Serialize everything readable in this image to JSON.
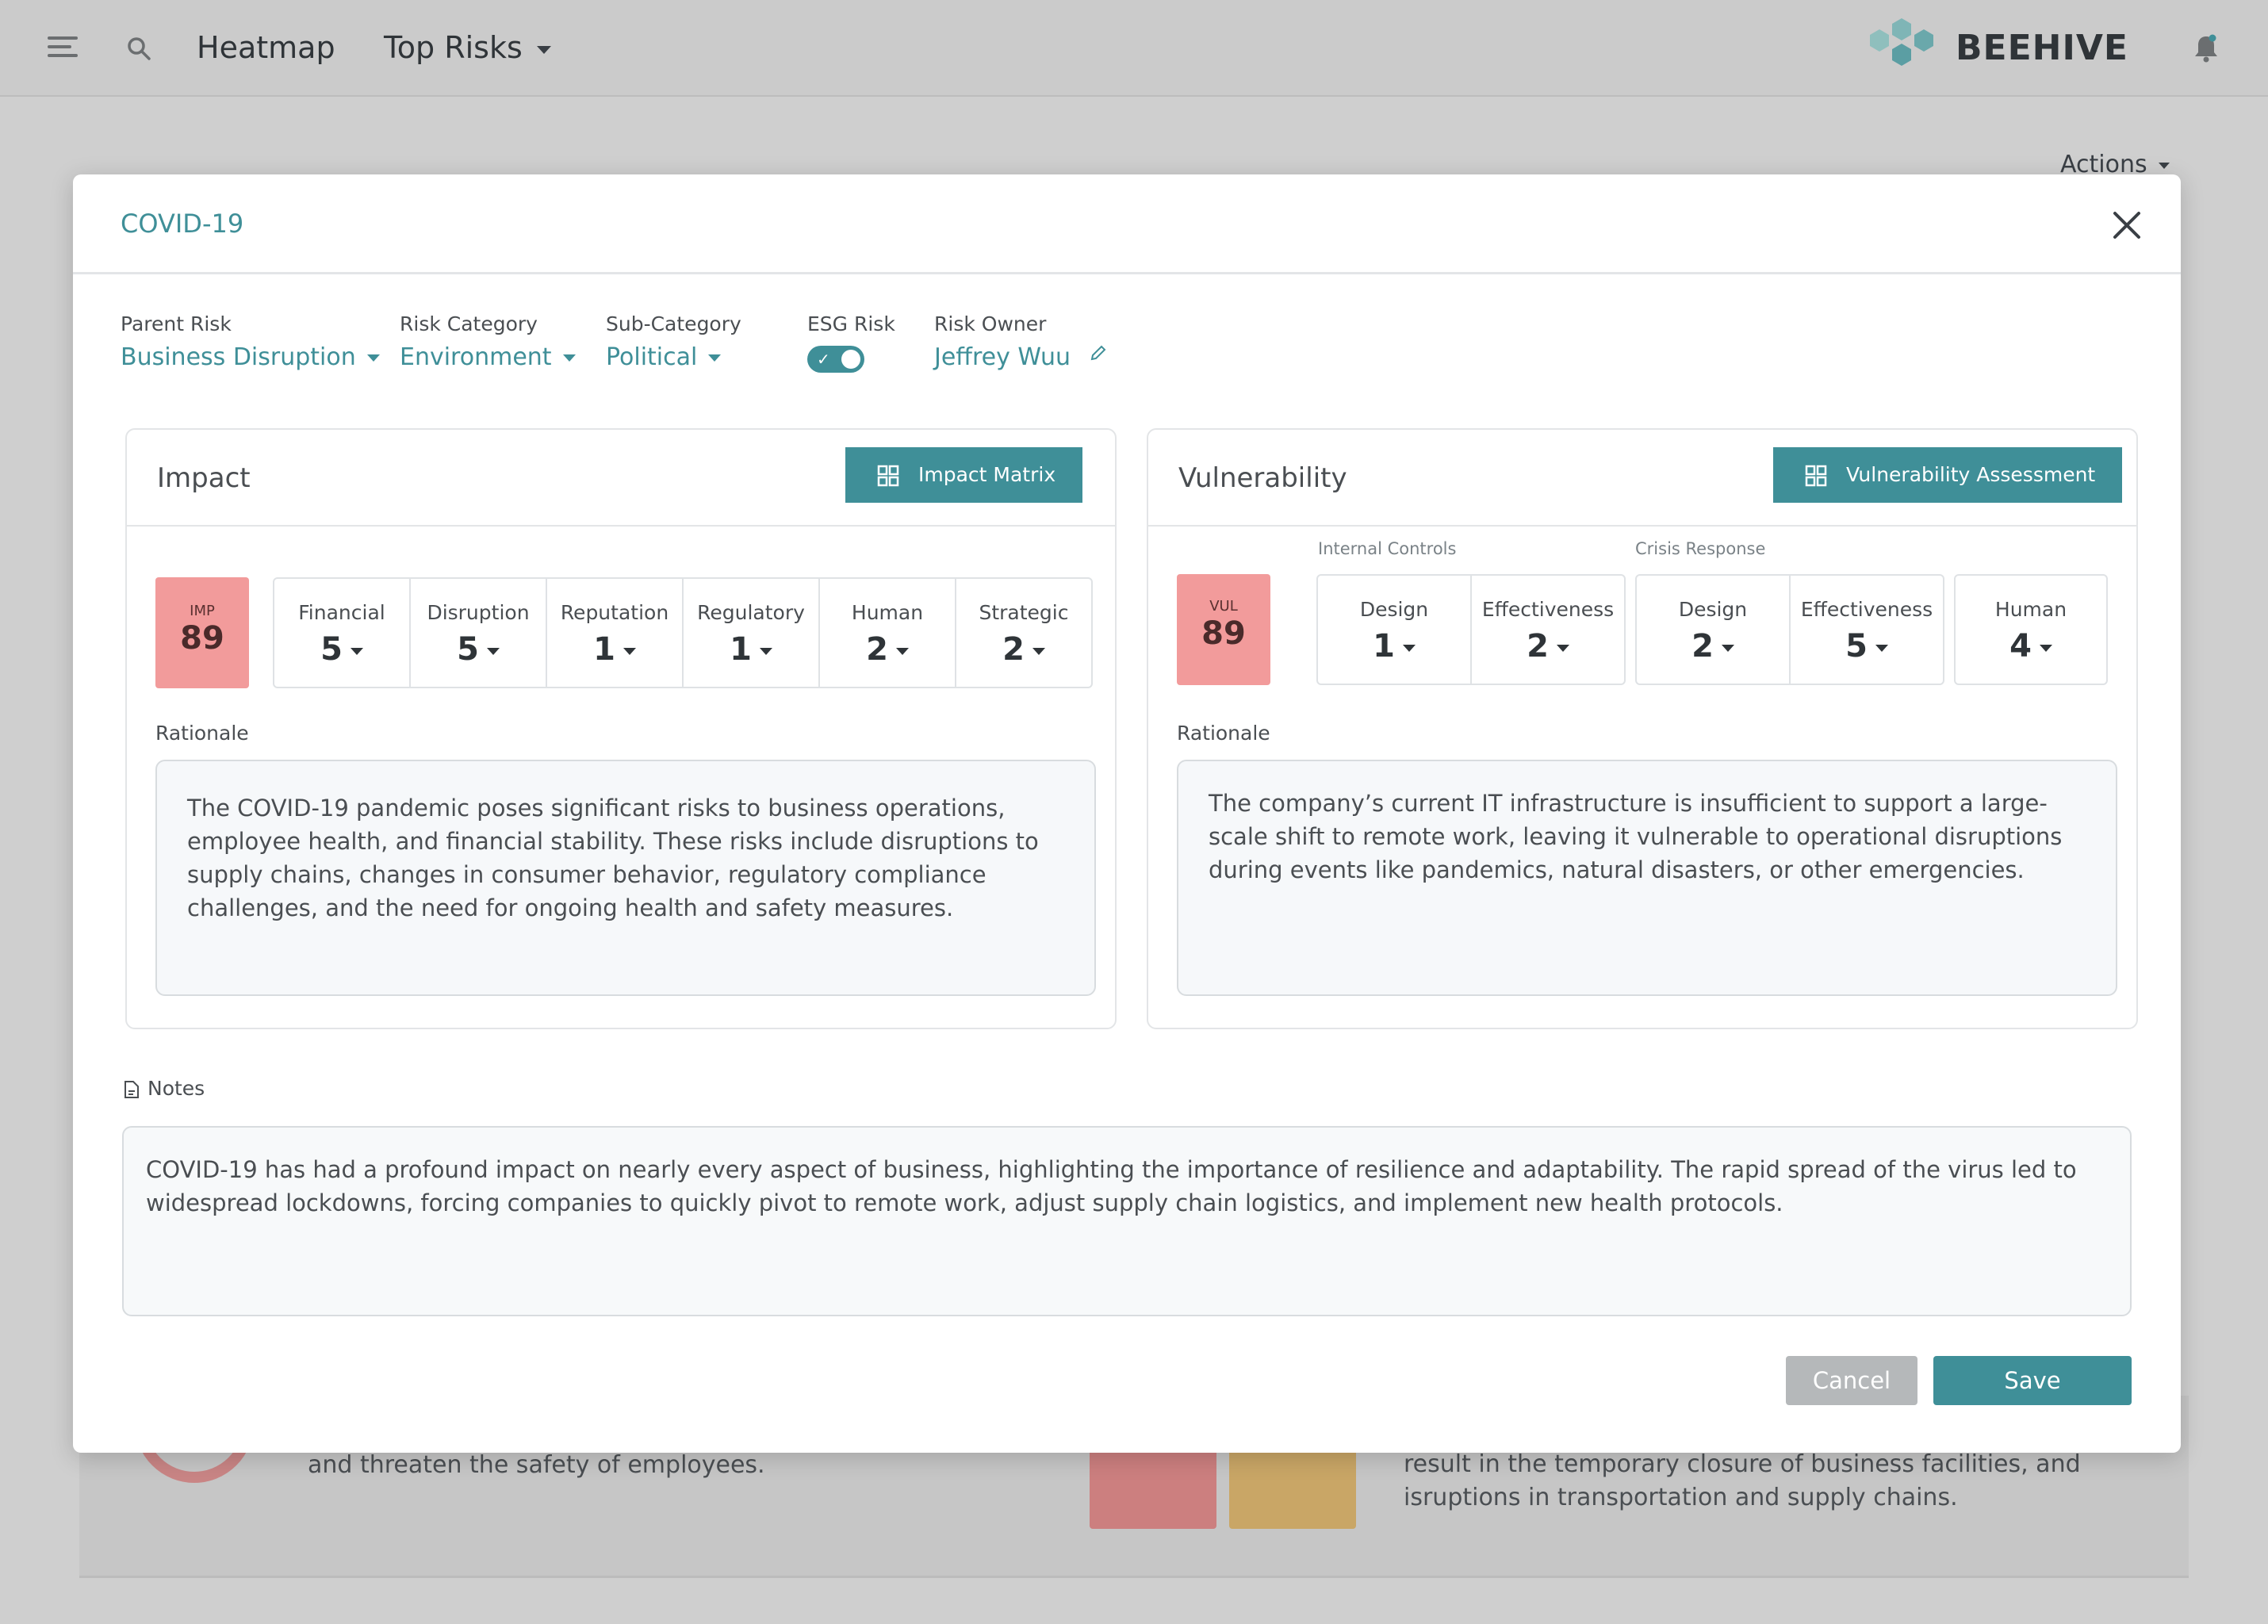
{
  "topbar": {
    "nav_heatmap": "Heatmap",
    "nav_toprisks": "Top Risks",
    "brand": "BEEHIVE"
  },
  "background": {
    "actions_label": "Actions",
    "card_text_left": "and threaten the safety of employees.",
    "card_text_right_1": "result in the temporary closure of business facilities, and",
    "card_text_right_2": "isruptions in transportation and supply chains."
  },
  "modal": {
    "title": "COVID-19",
    "meta": {
      "parent_risk_label": "Parent Risk",
      "parent_risk_value": "Business Disruption",
      "risk_category_label": "Risk Category",
      "risk_category_value": "Environment",
      "sub_category_label": "Sub-Category",
      "sub_category_value": "Political",
      "esg_label": "ESG Risk",
      "esg_on": true,
      "owner_label": "Risk Owner",
      "owner_value": "Jeffrey Wuu"
    },
    "impact": {
      "title": "Impact",
      "button": "Impact Matrix",
      "score_label": "IMP",
      "score": "89",
      "factors": [
        {
          "label": "Financial",
          "value": "5"
        },
        {
          "label": "Disruption",
          "value": "5"
        },
        {
          "label": "Reputation",
          "value": "1"
        },
        {
          "label": "Regulatory",
          "value": "1"
        },
        {
          "label": "Human",
          "value": "2"
        },
        {
          "label": "Strategic",
          "value": "2"
        }
      ],
      "rationale_label": "Rationale",
      "rationale": "The COVID-19 pandemic poses significant risks to business operations, employee health, and financial stability. These risks include disruptions to supply chains, changes in consumer behavior, regulatory compliance challenges, and the need for ongoing health and safety measures."
    },
    "vulnerability": {
      "title": "Vulnerability",
      "button": "Vulnerability Assessment",
      "score_label": "VUL",
      "score": "89",
      "internal_controls_label": "Internal Controls",
      "crisis_response_label": "Crisis Response",
      "internal_controls": [
        {
          "label": "Design",
          "value": "1"
        },
        {
          "label": "Effectiveness",
          "value": "2"
        }
      ],
      "crisis_response": [
        {
          "label": "Design",
          "value": "2"
        },
        {
          "label": "Effectiveness",
          "value": "5"
        }
      ],
      "human": {
        "label": "Human",
        "value": "4"
      },
      "rationale_label": "Rationale",
      "rationale": "The company’s current IT infrastructure is insufficient to support a large-scale shift to remote work, leaving it vulnerable to operational disruptions during events like pandemics, natural disasters, or other emergencies."
    },
    "notes_label": "Notes",
    "notes": "COVID-19 has had a profound impact on nearly every aspect of business, highlighting the importance of resilience and adaptability. The rapid spread of the virus led to widespread lockdowns, forcing companies to quickly pivot to remote work, adjust supply chain logistics, and implement new health protocols.",
    "cancel": "Cancel",
    "save": "Save"
  },
  "colors": {
    "accent": "#3f8f98",
    "score_bg": "#f29b9b",
    "overlay": "#cfcfcf"
  }
}
